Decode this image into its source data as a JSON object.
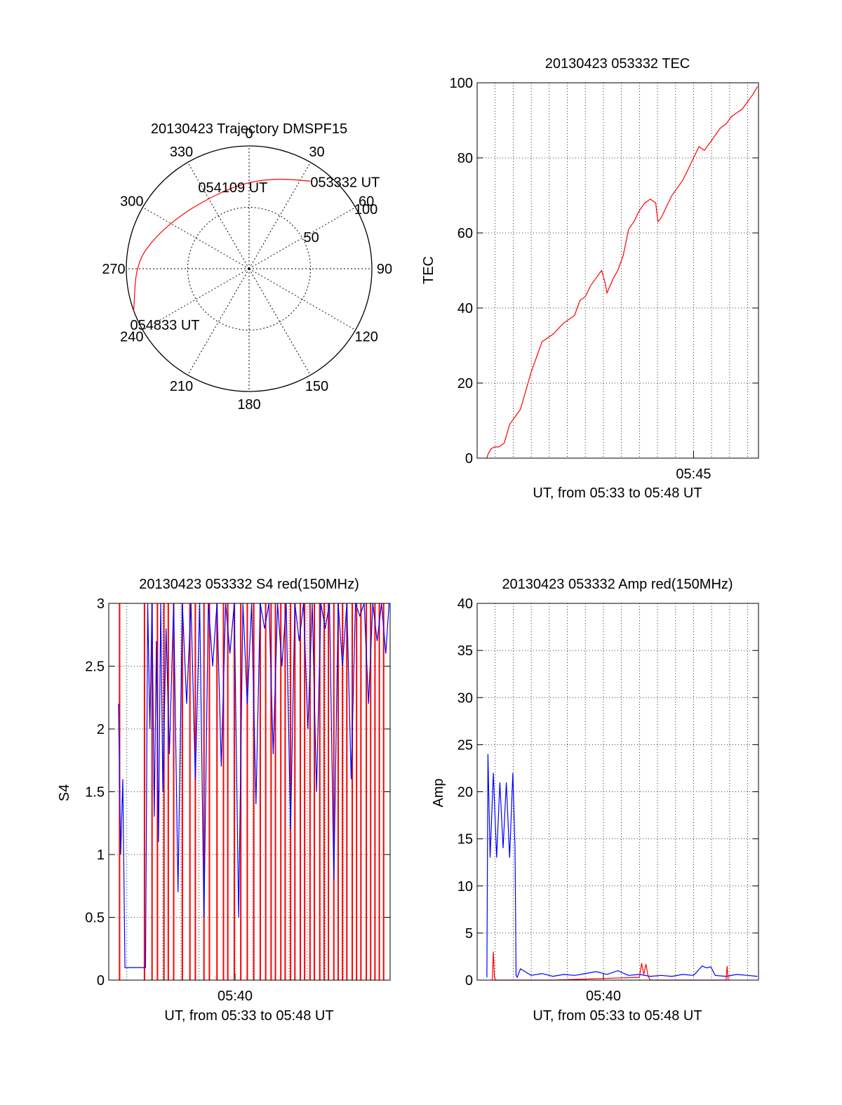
{
  "colors": {
    "red": "#ff0000",
    "blue": "#0000ff",
    "axis": "#000000",
    "grid": "#000000",
    "background": "#ffffff"
  },
  "chart_data": [
    {
      "id": "trajectory",
      "type": "polar",
      "title": "20130423 Trajectory DMSPF15",
      "azimuth_labels": [
        "0",
        "30",
        "60",
        "90",
        "120",
        "150",
        "180",
        "210",
        "240",
        "270",
        "300",
        "330"
      ],
      "radial_labels": [
        "50",
        "100"
      ],
      "radial_ticks": [
        50,
        100
      ],
      "rmax": 100,
      "grid": "dotted",
      "series": [
        {
          "color": "red",
          "points": [
            [
              35,
              87
            ],
            [
              20,
              78
            ],
            [
              5,
              72
            ],
            [
              -10,
              68
            ],
            [
              -30,
              66
            ],
            [
              -50,
              70
            ],
            [
              -70,
              80
            ],
            [
              -87,
              92
            ],
            [
              -110,
              100
            ]
          ]
        }
      ],
      "annotations": [
        {
          "text": "053332 UT",
          "az": 35,
          "r": 87
        },
        {
          "text": "054109 UT",
          "az": -10,
          "r": 68
        },
        {
          "text": "054833 UT",
          "az": -110,
          "r": 100
        }
      ]
    },
    {
      "id": "tec",
      "type": "line",
      "title": "20130423 053332 TEC",
      "xlabel": "UT, from 05:33 to 05:48 UT",
      "ylabel": "TEC",
      "xlim": [
        5.55,
        5.81
      ],
      "ylim": [
        0,
        100
      ],
      "yticks": [
        0,
        20,
        40,
        60,
        80,
        100
      ],
      "xticks": [
        5.75
      ],
      "xticklabels": [
        "05:45"
      ],
      "grid": "dotted",
      "series": [
        {
          "color": "red",
          "x": [
            5.559,
            5.56,
            5.563,
            5.566,
            5.57,
            5.575,
            5.58,
            5.585,
            5.59,
            5.595,
            5.6,
            5.605,
            5.61,
            5.62,
            5.63,
            5.64,
            5.645,
            5.65,
            5.655,
            5.66,
            5.665,
            5.668,
            5.67,
            5.673,
            5.676,
            5.68,
            5.685,
            5.69,
            5.695,
            5.7,
            5.705,
            5.71,
            5.715,
            5.717,
            5.72,
            5.725,
            5.73,
            5.735,
            5.74,
            5.745,
            5.75,
            5.755,
            5.76,
            5.765,
            5.77,
            5.775,
            5.78,
            5.785,
            5.79,
            5.795,
            5.8,
            5.805,
            5.809
          ],
          "values": [
            0,
            1,
            2.5,
            3,
            3,
            4,
            9,
            11,
            13,
            18,
            23,
            27,
            31,
            33,
            36,
            38,
            42,
            43,
            46,
            48,
            50,
            47,
            44,
            46,
            48,
            50,
            54,
            61,
            63,
            66,
            68,
            69,
            68,
            63,
            64,
            67,
            70,
            72,
            74,
            77,
            80,
            83,
            82,
            84,
            86,
            88,
            89,
            91,
            92,
            93,
            95,
            97,
            99
          ]
        }
      ]
    },
    {
      "id": "s4",
      "type": "line",
      "title": "20130423 053332 S4 red(150MHz)",
      "xlabel": "UT, from 05:33 to 05:48 UT",
      "ylabel": "S4",
      "xlim": [
        5.55,
        5.81
      ],
      "ylim": [
        0,
        3
      ],
      "yticks": [
        0,
        0.5,
        1,
        1.5,
        2,
        2.5,
        3
      ],
      "yticklabels": [
        "0",
        "0.5",
        "1",
        "1.5",
        "2",
        "2.5",
        "3"
      ],
      "xticks": [
        5.6667
      ],
      "xticklabels": [
        "05:40"
      ],
      "grid": "dotted",
      "series": [
        {
          "color": "red",
          "description_values": "vertical spikes 0 to 3",
          "x": [
            5.56,
            5.583,
            5.59,
            5.595,
            5.601,
            5.605,
            5.61,
            5.618,
            5.625,
            5.63,
            5.638,
            5.643,
            5.65,
            5.656,
            5.66,
            5.666,
            5.672,
            5.678,
            5.684,
            5.69,
            5.695,
            5.7,
            5.704,
            5.709,
            5.713,
            5.718,
            5.722,
            5.727,
            5.731,
            5.736,
            5.74,
            5.745,
            5.749,
            5.753,
            5.758,
            5.762,
            5.766,
            5.77,
            5.775,
            5.779,
            5.783,
            5.788,
            5.792,
            5.796,
            5.8,
            5.804
          ],
          "values": [
            3,
            3,
            3,
            3,
            3,
            3,
            3,
            3,
            3,
            3,
            3,
            3,
            3,
            3,
            3,
            3,
            3,
            3,
            3,
            3,
            3,
            3,
            3,
            3,
            3,
            3,
            3,
            3,
            3,
            3,
            3,
            3,
            3,
            3,
            3,
            3,
            3,
            3,
            3,
            3,
            3,
            3,
            3,
            3,
            3,
            3
          ]
        },
        {
          "color": "blue",
          "x": [
            5.559,
            5.561,
            5.563,
            5.565,
            5.567,
            5.57,
            5.575,
            5.58,
            5.584,
            5.586,
            5.588,
            5.59,
            5.592,
            5.594,
            5.596,
            5.598,
            5.6,
            5.603,
            5.606,
            5.61,
            5.614,
            5.618,
            5.622,
            5.626,
            5.63,
            5.634,
            5.638,
            5.642,
            5.646,
            5.65,
            5.654,
            5.658,
            5.662,
            5.666,
            5.67,
            5.674,
            5.678,
            5.682,
            5.686,
            5.69,
            5.694,
            5.698,
            5.702,
            5.706,
            5.71,
            5.714,
            5.718,
            5.722,
            5.726,
            5.73,
            5.734,
            5.738,
            5.742,
            5.746,
            5.75,
            5.754,
            5.758,
            5.762,
            5.766,
            5.77,
            5.774,
            5.778,
            5.782,
            5.786,
            5.79,
            5.794,
            5.798,
            5.802,
            5.806,
            5.809
          ],
          "values": [
            2.2,
            1.0,
            1.6,
            0.1,
            0.1,
            0.1,
            0.1,
            0.1,
            0.1,
            3,
            2.0,
            3,
            1.3,
            2.7,
            1.1,
            3,
            1.5,
            2.8,
            1.8,
            3,
            0.7,
            3,
            2.2,
            3,
            1.6,
            3,
            0.5,
            3,
            2.5,
            3,
            1.7,
            3,
            2.6,
            3,
            0.5,
            3,
            2.2,
            3,
            1.4,
            3,
            2.8,
            3,
            1.8,
            3,
            2.5,
            3,
            1.2,
            3,
            2.7,
            3,
            2.0,
            3,
            1.5,
            3,
            2.8,
            3,
            0.8,
            3,
            2.5,
            3,
            1.6,
            3,
            2.9,
            3,
            2.2,
            3,
            2.7,
            3,
            2.6,
            3
          ]
        }
      ]
    },
    {
      "id": "amp",
      "type": "line",
      "title": "20130423 053332 Amp red(150MHz)",
      "xlabel": "UT, from 05:33 to 05:48 UT",
      "ylabel": "Amp",
      "xlim": [
        5.55,
        5.81
      ],
      "ylim": [
        0,
        40
      ],
      "yticks": [
        0,
        5,
        10,
        15,
        20,
        25,
        30,
        35,
        40
      ],
      "xticks": [
        5.6667
      ],
      "xticklabels": [
        "05:40"
      ],
      "grid": "dotted",
      "series": [
        {
          "color": "blue",
          "x": [
            5.559,
            5.56,
            5.562,
            5.565,
            5.568,
            5.571,
            5.574,
            5.577,
            5.58,
            5.583,
            5.585,
            5.586,
            5.587,
            5.59,
            5.6,
            5.61,
            5.62,
            5.63,
            5.64,
            5.65,
            5.66,
            5.67,
            5.68,
            5.69,
            5.7,
            5.71,
            5.72,
            5.73,
            5.74,
            5.75,
            5.758,
            5.762,
            5.766,
            5.77,
            5.78,
            5.79,
            5.8,
            5.809
          ],
          "values": [
            0.3,
            24,
            13,
            22,
            13,
            21,
            14,
            21,
            13,
            22,
            14,
            0.5,
            0.3,
            1.2,
            0.5,
            0.7,
            0.4,
            0.6,
            0.5,
            0.7,
            0.9,
            0.6,
            1.0,
            0.5,
            0.6,
            0.4,
            0.5,
            0.4,
            0.6,
            0.5,
            1.5,
            1.3,
            1.4,
            0.5,
            0.4,
            0.6,
            0.5,
            0.4
          ]
        },
        {
          "color": "red",
          "x": [
            5.564,
            5.565,
            5.566,
            5.567,
            5.62,
            5.7,
            5.702,
            5.704,
            5.706,
            5.708,
            5.71,
            5.78,
            5.781,
            5.782
          ],
          "values": [
            0,
            3,
            0.3,
            0,
            0,
            0.3,
            1.8,
            0.6,
            1.7,
            0.4,
            0,
            0,
            1.5,
            0
          ]
        }
      ]
    }
  ]
}
